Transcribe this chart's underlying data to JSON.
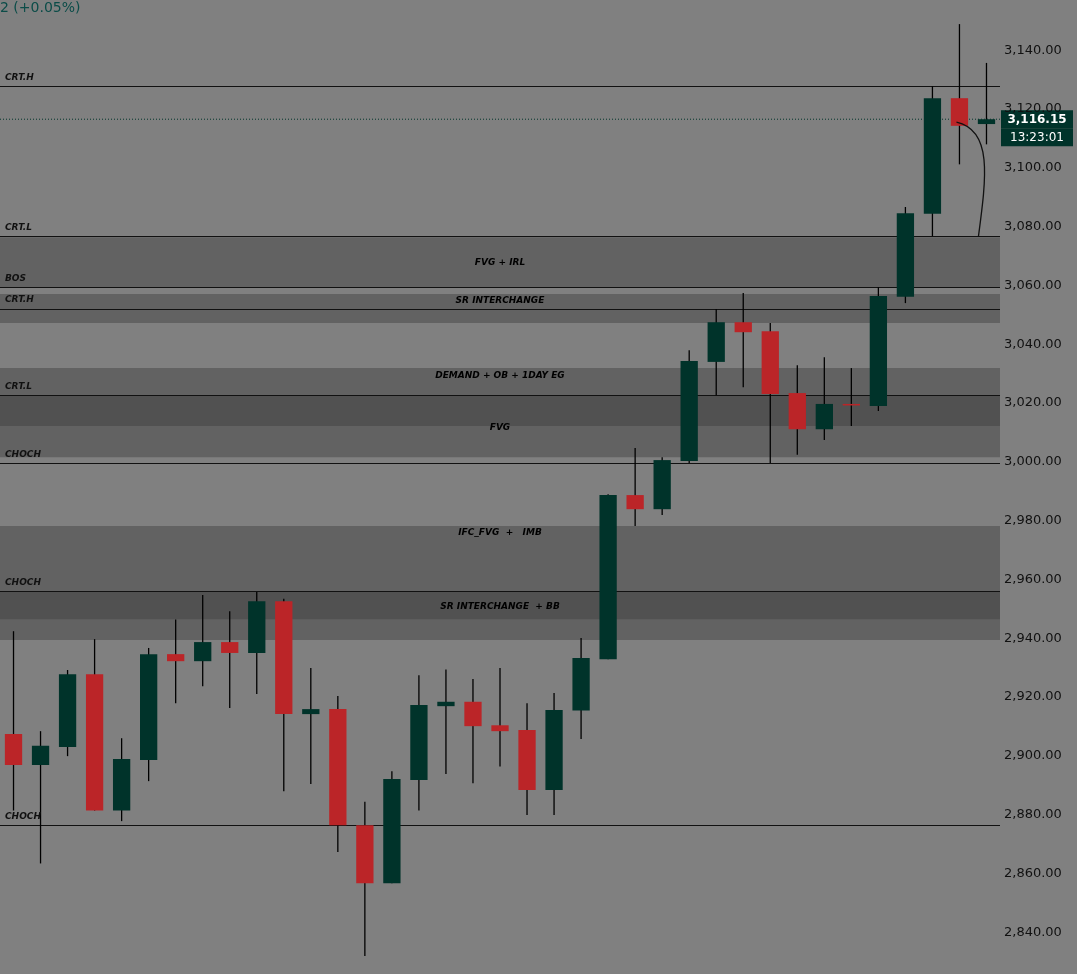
{
  "chart_data": {
    "type": "candlestick",
    "categories": [
      null,
      null,
      null,
      null,
      null,
      null,
      null,
      null,
      null,
      null,
      null,
      null,
      null,
      null,
      null,
      null,
      null,
      null,
      null,
      null,
      null,
      null,
      null,
      null,
      null,
      null,
      null,
      null,
      null,
      null,
      null,
      null,
      null,
      null,
      null,
      null,
      null
    ],
    "ohlc": [
      [
        2907,
        2942,
        2881,
        2896.5
      ],
      [
        2896.5,
        2908,
        2863,
        2903
      ],
      [
        2902.6,
        2928.8,
        2899.5,
        2927.4
      ],
      [
        2927.4,
        2939.3,
        2881,
        2881
      ],
      [
        2881,
        2905.6,
        2877.4,
        2898.5
      ],
      [
        2898.2,
        2936.3,
        2891,
        2934.2
      ],
      [
        2934.2,
        2946,
        2917.5,
        2931.8
      ],
      [
        2931.8,
        2954.3,
        2923.3,
        2938.3
      ],
      [
        2938.3,
        2948.8,
        2915.9,
        2934.6
      ],
      [
        2934.6,
        2955.3,
        2920.6,
        2952.2
      ],
      [
        2952.2,
        2953,
        2887.6,
        2913.8
      ],
      [
        2913.8,
        2929.5,
        2890,
        2915.5
      ],
      [
        2915.5,
        2920,
        2866.9,
        2876
      ],
      [
        2876,
        2884,
        2831.5,
        2856.3
      ],
      [
        2856.3,
        2894.4,
        2856.3,
        2891.7
      ],
      [
        2891.4,
        2927,
        2881,
        2916.9
      ],
      [
        2916.5,
        2929,
        2893.4,
        2918
      ],
      [
        2918,
        2925.7,
        2890.3,
        2909.7
      ],
      [
        2910,
        2929.5,
        2896,
        2908
      ],
      [
        2908.4,
        2917.5,
        2879.5,
        2888
      ],
      [
        2888,
        2921,
        2879.5,
        2915.2
      ],
      [
        2915,
        2939.7,
        2905.3,
        2932.9
      ],
      [
        2932.5,
        2988.6,
        2932.5,
        2988.3
      ],
      [
        2988.3,
        3004.3,
        2977.8,
        2983.5
      ],
      [
        2983.5,
        3001.2,
        2981.5,
        3000.2
      ],
      [
        2999.9,
        3037.6,
        2999.2,
        3033.9
      ],
      [
        3033.6,
        3051.6,
        3022.3,
        3047.1
      ],
      [
        3047.1,
        3057,
        3025,
        3043.7
      ],
      [
        3044,
        3046.8,
        2999.2,
        3022.7
      ],
      [
        3023,
        3032.5,
        3002,
        3010.7
      ],
      [
        3010.7,
        3035.2,
        3007,
        3019.3
      ],
      [
        3019.3,
        3031.5,
        3011.8,
        3019.1
      ],
      [
        3018.6,
        3059,
        3016.9,
        3056
      ],
      [
        3055.8,
        3086.3,
        3053.6,
        3084.2
      ],
      [
        3084,
        3127.4,
        3076.4,
        3123.3
      ],
      [
        3123.3,
        3148.5,
        3100.8,
        3113.9
      ],
      [
        3114.5,
        3135.3,
        3107.6,
        3116.15
      ]
    ],
    "colors": [
      "#bb2528",
      "#00332a",
      "#00332a",
      "#bb2528",
      "#00332a",
      "#00332a",
      "#bb2528",
      "#00332a",
      "#bb2528",
      "#00332a",
      "#bb2528",
      "#00332a",
      "#bb2528",
      "#bb2528",
      "#00332a",
      "#00332a",
      "#00332a",
      "#bb2528",
      "#bb2528",
      "#bb2528",
      "#00332a",
      "#00332a",
      "#00332a",
      "#bb2528",
      "#00332a",
      "#00332a",
      "#00332a",
      "#bb2528",
      "#bb2528",
      "#bb2528",
      "#00332a",
      "#bb2528",
      "#00332a",
      "#00332a",
      "#00332a",
      "#bb2528",
      "#00332a"
    ],
    "ylim": [
      2825.4,
      3156.7
    ],
    "yticks": [
      {
        "value": 2840,
        "label": "2,840.00"
      },
      {
        "value": 2860,
        "label": "2,860.00"
      },
      {
        "value": 2880,
        "label": "2,880.00"
      },
      {
        "value": 2900,
        "label": "2,900.00"
      },
      {
        "value": 2920,
        "label": "2,920.00"
      },
      {
        "value": 2940,
        "label": "2,940.00"
      },
      {
        "value": 2960,
        "label": "2,960.00"
      },
      {
        "value": 2980,
        "label": "2,980.00"
      },
      {
        "value": 3000,
        "label": "3,000.00"
      },
      {
        "value": 3020,
        "label": "3,020.00"
      },
      {
        "value": 3040,
        "label": "3,040.00"
      },
      {
        "value": 3060,
        "label": "3,060.00"
      },
      {
        "value": 3080,
        "label": "3,080.00"
      },
      {
        "value": 3100,
        "label": "3,100.00"
      },
      {
        "value": 3120,
        "label": "3,120.00"
      },
      {
        "value": 3140,
        "label": "3,140.00"
      }
    ],
    "tick_labels": "y",
    "grid": false,
    "bands": [
      {
        "axis": "y",
        "from": 2946.1,
        "to": 2955.3,
        "label": "SR INTERCHANGE  + BB",
        "color": "#3a3a3a"
      },
      {
        "axis": "y",
        "from": 2939,
        "to": 2977.8,
        "label": "IFC_FVG  +   IMB",
        "color": "#3a3a3a"
      },
      {
        "axis": "y",
        "from": 3001.2,
        "to": 3022,
        "label": "FVG",
        "color": "#3a3a3a"
      },
      {
        "axis": "y",
        "from": 3011.8,
        "to": 3031.5,
        "label": "DEMAND + OB + 1DAY EG",
        "color": "#3a3a3a"
      },
      {
        "axis": "y",
        "from": 3046.8,
        "to": 3056.7,
        "label": "SR INTERCHANGE",
        "color": "#3a3a3a"
      },
      {
        "axis": "y",
        "from": 3059,
        "to": 3076,
        "label": "FVG + IRL",
        "color": "#3a3a3a"
      }
    ],
    "ref_lines": [
      {
        "axis": "y",
        "value": 3127.4,
        "label": "CRT.H"
      },
      {
        "axis": "y",
        "value": 3076.4,
        "label": "CRT.L"
      },
      {
        "axis": "y",
        "value": 3059,
        "label": "BOS"
      },
      {
        "axis": "y",
        "value": 3051.6,
        "label": "CRT.H"
      },
      {
        "axis": "y",
        "value": 3022.3,
        "label": "CRT.L"
      },
      {
        "axis": "y",
        "value": 2999.2,
        "label": "CHOCH"
      },
      {
        "axis": "y",
        "value": 2955.6,
        "label": "CHOCH"
      },
      {
        "axis": "y",
        "value": 2876,
        "label": "CHOCH"
      },
      {
        "axis": "y",
        "value": 3116.15,
        "label": "3,116.15",
        "line_style": "dotted",
        "color": "#00332a"
      }
    ],
    "annotations": [
      "2 (+0.05%)",
      "13:23:01"
    ]
  }
}
